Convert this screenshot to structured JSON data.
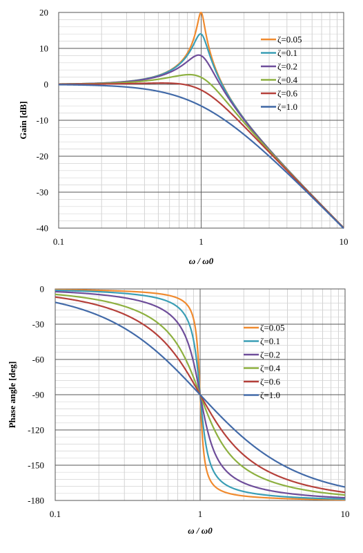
{
  "chart_data": [
    {
      "type": "line",
      "xlabel": "ω / ω0",
      "ylabel": "Gain [dB]",
      "xscale": "log",
      "xlim": [
        0.1,
        10
      ],
      "ylim": [
        -40,
        20
      ],
      "xticks": [
        "0.1",
        "1",
        "10"
      ],
      "yticks": [
        "20",
        "10",
        "0",
        "-10",
        "-20",
        "-30",
        "-40"
      ],
      "grid": true,
      "legend_position": "top-right",
      "zetas": [
        0.05,
        0.1,
        0.2,
        0.4,
        0.6,
        1.0
      ],
      "series": [
        {
          "name": "ζ=0.05",
          "color": "#F08A2E"
        },
        {
          "name": "ζ=0.1",
          "color": "#3A9EB5"
        },
        {
          "name": "ζ=0.2",
          "color": "#6E4D9A"
        },
        {
          "name": "ζ=0.4",
          "color": "#8DB040"
        },
        {
          "name": "ζ=0.6",
          "color": "#B5403A"
        },
        {
          "name": "ζ=1.0",
          "color": "#426AA8"
        }
      ]
    },
    {
      "type": "line",
      "xlabel": "ω / ω0",
      "ylabel": "Phase angle [deg]",
      "xscale": "log",
      "xlim": [
        0.1,
        10
      ],
      "ylim": [
        -180,
        0
      ],
      "xticks": [
        "0.1",
        "1",
        "10"
      ],
      "yticks": [
        "0",
        "-30",
        "-60",
        "-90",
        "-120",
        "-150",
        "-180"
      ],
      "grid": true,
      "legend_position": "center-right",
      "zetas": [
        0.05,
        0.1,
        0.2,
        0.4,
        0.6,
        1.0
      ],
      "series": [
        {
          "name": "ζ=0.05",
          "color": "#F08A2E"
        },
        {
          "name": "ζ=0.1",
          "color": "#3A9EB5"
        },
        {
          "name": "ζ=0.2",
          "color": "#6E4D9A"
        },
        {
          "name": "ζ=0.4",
          "color": "#8DB040"
        },
        {
          "name": "ζ=0.6",
          "color": "#B5403A"
        },
        {
          "name": "ζ=1.0",
          "color": "#426AA8"
        }
      ]
    }
  ]
}
